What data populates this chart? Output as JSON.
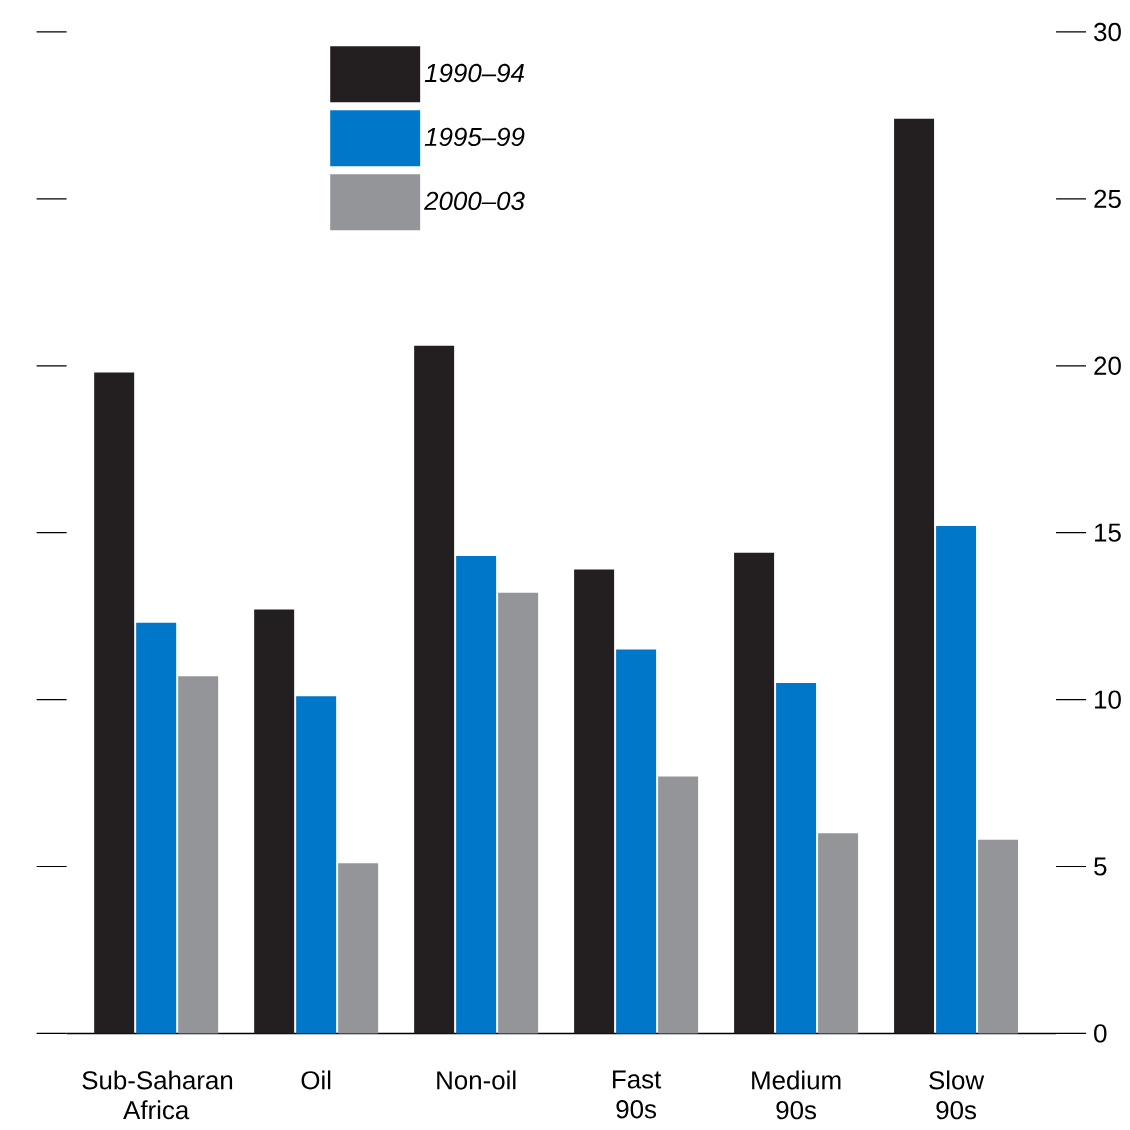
{
  "chart_data": {
    "type": "bar",
    "categories": [
      "Sub-Saharan Africa",
      "Oil",
      "Non-oil",
      "Fast 90s",
      "Medium 90s",
      "Slow 90s"
    ],
    "series": [
      {
        "name": "1990–94",
        "color": "#231f20",
        "values": [
          19.8,
          12.7,
          20.6,
          13.9,
          14.4,
          27.4
        ]
      },
      {
        "name": "1995–99",
        "color": "#0077c8",
        "values": [
          12.3,
          10.1,
          14.3,
          11.5,
          10.5,
          15.2
        ]
      },
      {
        "name": "2000–03",
        "color": "#939598",
        "values": [
          10.7,
          5.1,
          13.2,
          7.7,
          6.0,
          5.8
        ]
      }
    ],
    "ylim": [
      0,
      30
    ],
    "yticks": [
      0,
      5,
      10,
      15,
      20,
      25,
      30
    ],
    "legend": "top",
    "grid": false
  }
}
